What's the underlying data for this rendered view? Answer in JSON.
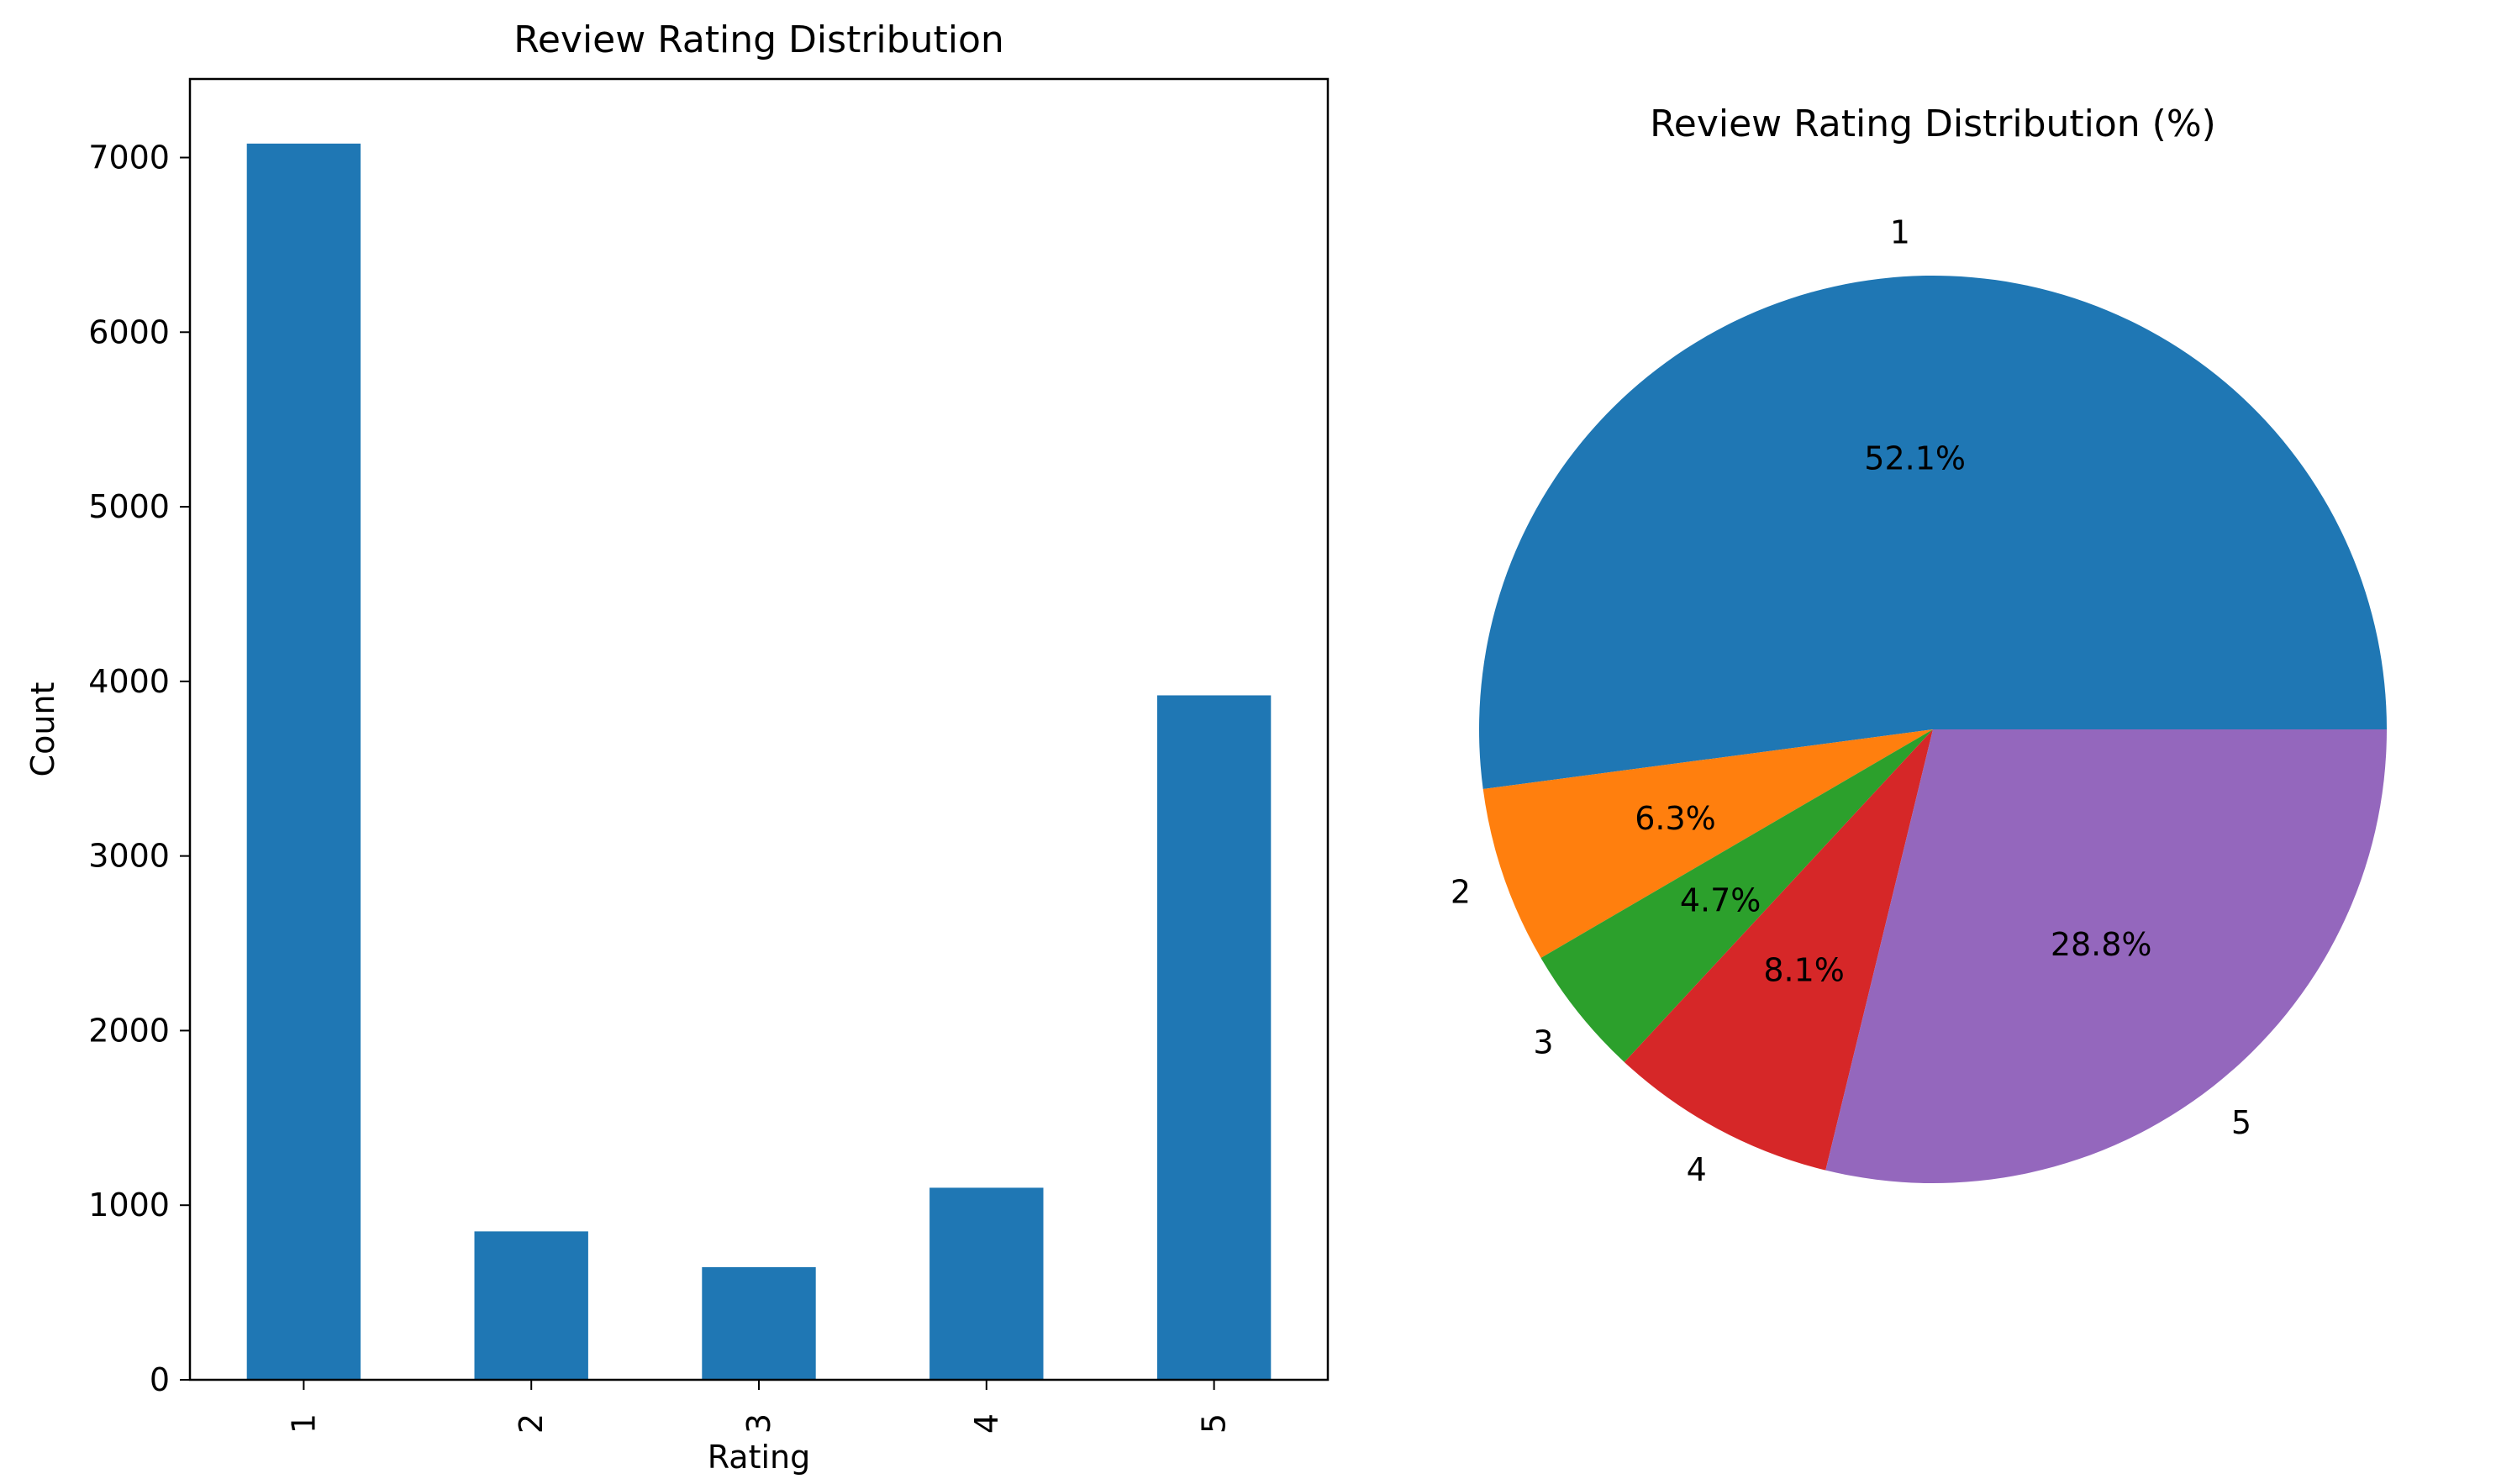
{
  "chart_data": [
    {
      "type": "bar",
      "title": "Review Rating Distribution",
      "xlabel": "Rating",
      "ylabel": "Count",
      "categories": [
        "1",
        "2",
        "3",
        "4",
        "5"
      ],
      "values": [
        7080,
        850,
        645,
        1100,
        3920
      ],
      "ylim": [
        0,
        7450
      ],
      "yticks": [
        0,
        1000,
        2000,
        3000,
        4000,
        5000,
        6000,
        7000
      ],
      "color": "#1f77b4",
      "grid": false
    },
    {
      "type": "pie",
      "title": "Review Rating Distribution (%)",
      "labels": [
        "1",
        "2",
        "3",
        "4",
        "5"
      ],
      "values": [
        52.1,
        6.3,
        4.7,
        8.1,
        28.8
      ],
      "pct_labels": [
        "52.1%",
        "6.3%",
        "4.7%",
        "8.1%",
        "28.8%"
      ],
      "colors": [
        "#1f77b4",
        "#ff7f0e",
        "#2ca02c",
        "#d62728",
        "#9467bd"
      ]
    }
  ]
}
